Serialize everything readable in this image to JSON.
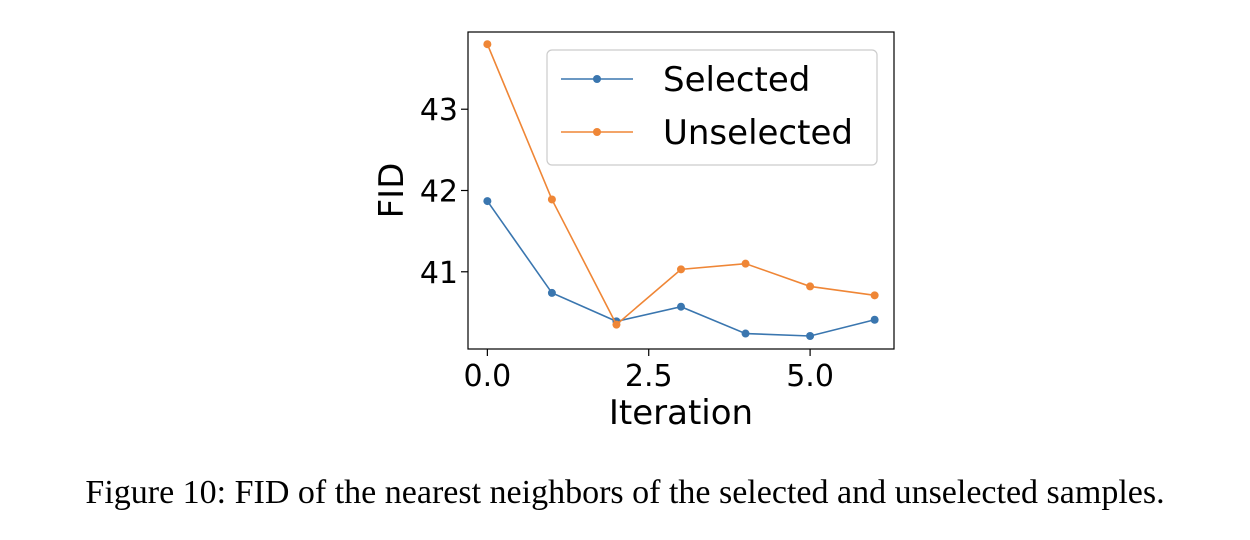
{
  "caption": "Figure 10: FID of the nearest neighbors of the selected and unselected samples.",
  "chart_data": {
    "type": "line",
    "title": "",
    "xlabel": "Iteration",
    "ylabel": "FID",
    "xlim": [
      -0.3,
      6.3
    ],
    "ylim": [
      40.05,
      43.95
    ],
    "xticks": [
      0.0,
      2.5,
      5.0
    ],
    "xtick_labels": [
      "0.0",
      "2.5",
      "5.0"
    ],
    "yticks": [
      41,
      42,
      43
    ],
    "ytick_labels": [
      "41",
      "42",
      "43"
    ],
    "grid": false,
    "legend_position": "upper right",
    "x": [
      0,
      1,
      2,
      3,
      4,
      5,
      6
    ],
    "series": [
      {
        "name": "Selected",
        "color": "#3a76af",
        "values": [
          41.87,
          40.74,
          40.39,
          40.57,
          40.24,
          40.21,
          40.41
        ]
      },
      {
        "name": "Unselected",
        "color": "#ef8636",
        "values": [
          43.8,
          41.89,
          40.35,
          41.03,
          41.1,
          40.82,
          40.71
        ]
      }
    ]
  }
}
